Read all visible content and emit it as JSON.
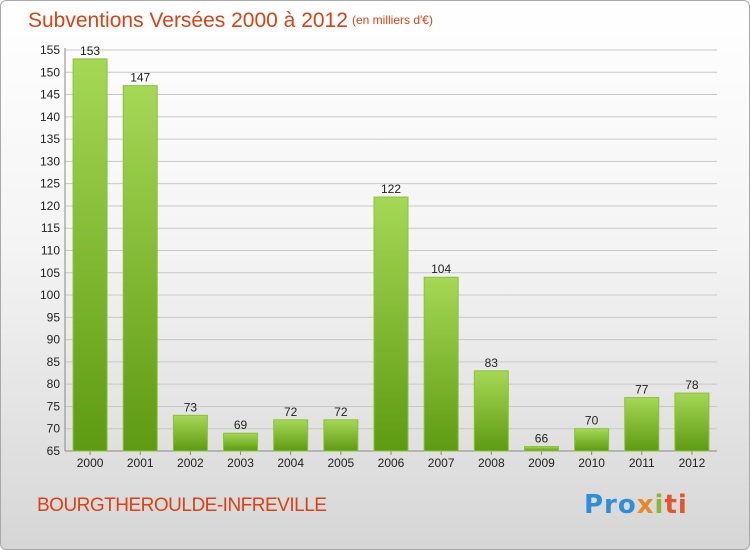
{
  "header": {
    "title": "Subventions Versées 2000 à 2012",
    "unit": "(en milliers d'€)"
  },
  "footer": {
    "commune": "BOURGTHEROULDE-INFREVILLE",
    "logo": [
      "Pro",
      "x",
      "i",
      "ti"
    ]
  },
  "colors": {
    "title": "#d84215",
    "bar_light": "#a6d855",
    "bar_dark": "#5e9a12",
    "grid": "#c8c8c8"
  },
  "chart_data": {
    "type": "bar",
    "categories": [
      "2000",
      "2001",
      "2002",
      "2003",
      "2004",
      "2005",
      "2006",
      "2007",
      "2008",
      "2009",
      "2010",
      "2011",
      "2012"
    ],
    "values": [
      153,
      147,
      73,
      69,
      72,
      72,
      122,
      104,
      83,
      66,
      70,
      77,
      78
    ],
    "ylim": [
      65,
      155
    ],
    "yticks": [
      65,
      70,
      75,
      80,
      85,
      90,
      95,
      100,
      105,
      110,
      115,
      120,
      125,
      130,
      135,
      140,
      145,
      150,
      155
    ],
    "grid": true,
    "legend": "none"
  }
}
